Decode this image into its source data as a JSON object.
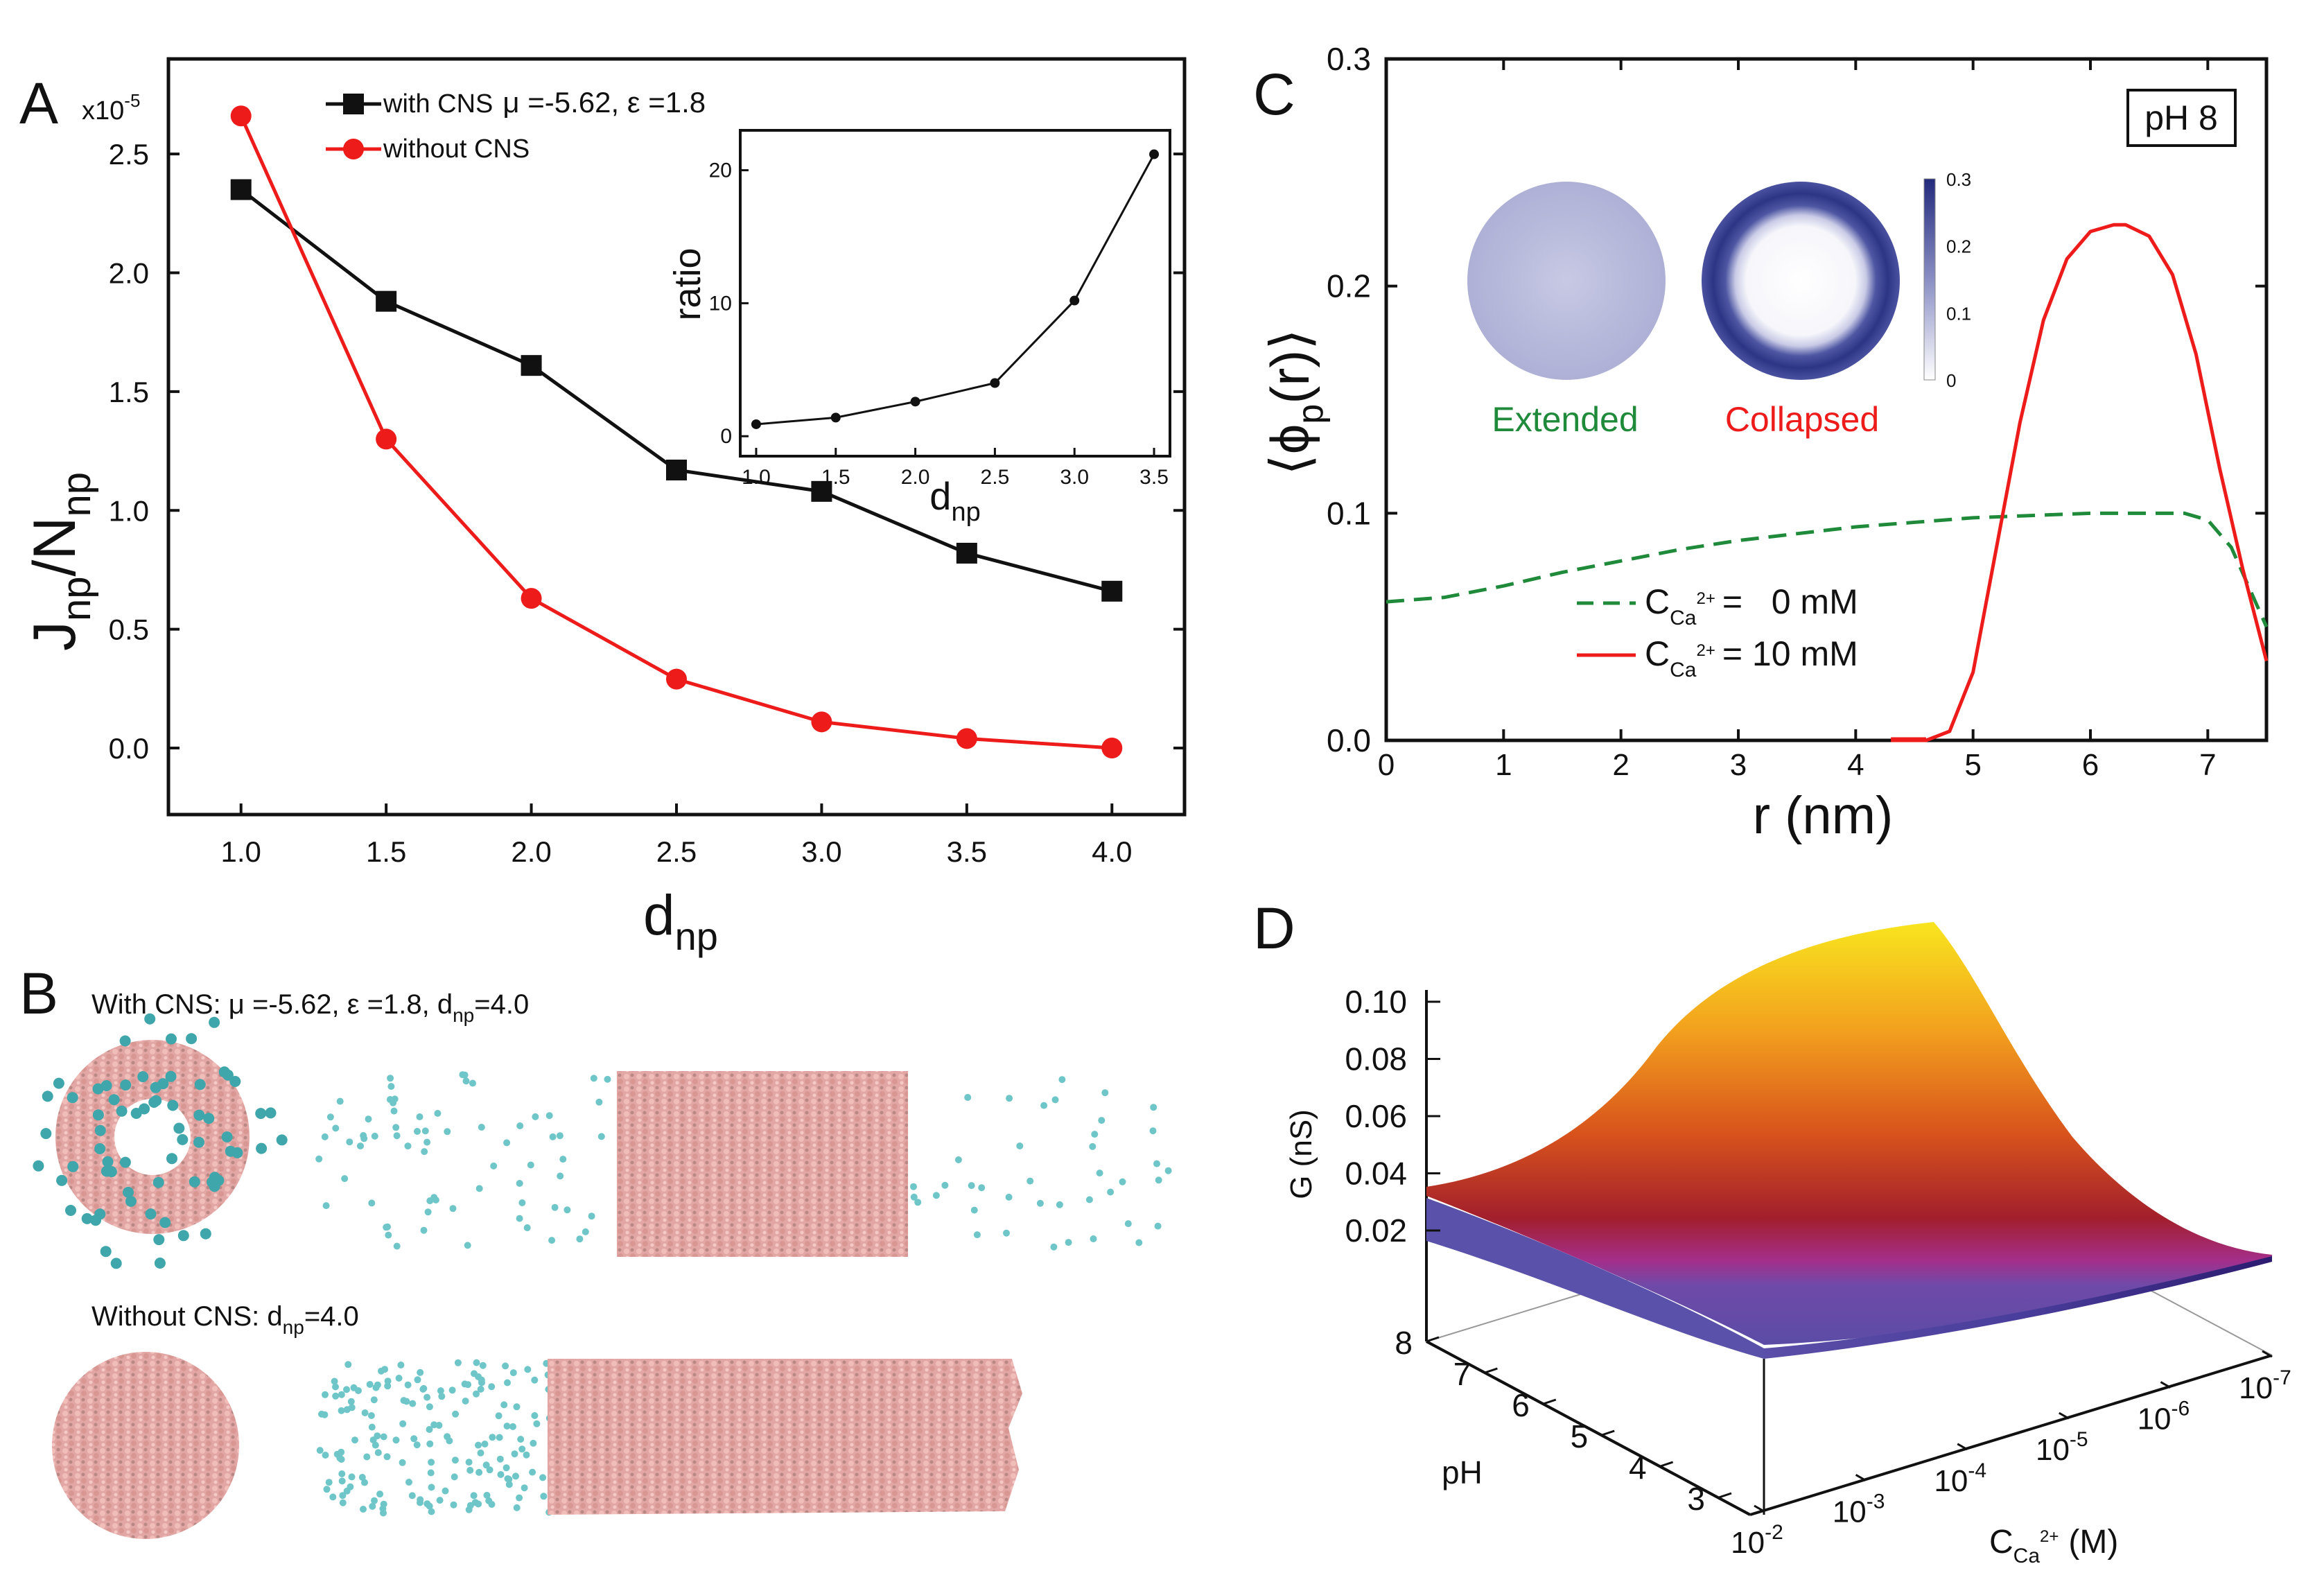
{
  "figure": {
    "panel_labels": {
      "a": "A",
      "b": "B",
      "c": "C",
      "d": "D"
    }
  },
  "colors": {
    "black": "#111111",
    "red": "#ee1b1b",
    "green": "#1f8a3a",
    "cyan": "#6ec6c8",
    "pink": "#e7a9a6",
    "disk_light": "#b4b6da",
    "disk_dark": "#2c3585"
  },
  "chart_data": [
    {
      "panel": "A",
      "type": "line",
      "xlabel": "d",
      "xlabel_sub": "np",
      "ylabel_main": "J",
      "ylabel_sub1": "np",
      "ylabel_mid": "/N",
      "ylabel_sub2": "np",
      "multiplier": "x10",
      "multiplier_exp": "-5",
      "xlim": [
        0.75,
        4.25
      ],
      "ylim": [
        -0.28,
        2.9
      ],
      "xticks": [
        "1.0",
        "1.5",
        "2.0",
        "2.5",
        "3.0",
        "3.5",
        "4.0"
      ],
      "yticks": [
        "0.0",
        "0.5",
        "1.0",
        "1.5",
        "2.0",
        "2.5"
      ],
      "x": [
        1.0,
        1.5,
        2.0,
        2.5,
        3.0,
        3.5,
        4.0
      ],
      "series": [
        {
          "name": "with CNS",
          "legend_params": "μ =-5.62, ε =1.8",
          "marker": "square",
          "color": "#111111",
          "values": [
            2.35,
            1.88,
            1.61,
            1.17,
            1.08,
            0.82,
            0.66
          ]
        },
        {
          "name": "without CNS",
          "marker": "circle",
          "color": "#ee1b1b",
          "values": [
            2.66,
            1.3,
            0.63,
            0.29,
            0.11,
            0.04,
            0.0
          ]
        }
      ],
      "inset": {
        "type": "line",
        "ylabel": "ratio",
        "xlabel": "d",
        "xlabel_sub": "np",
        "xlim": [
          0.9,
          3.6
        ],
        "ylim": [
          -1.5,
          23
        ],
        "xticks": [
          "1.0",
          "1.5",
          "2.0",
          "2.5",
          "3.0",
          "3.5"
        ],
        "yticks": [
          "0",
          "10",
          "20"
        ],
        "x": [
          1.0,
          1.5,
          2.0,
          2.5,
          3.0,
          3.5
        ],
        "values": [
          0.9,
          1.4,
          2.6,
          4.0,
          10.2,
          21.2
        ]
      }
    },
    {
      "panel": "C",
      "type": "line",
      "xlabel": "r (nm)",
      "ylabel": "⟨ϕ",
      "ylabel_sub": "p",
      "ylabel_end": "(r)⟩",
      "xlim": [
        0,
        7.5
      ],
      "ylim": [
        0,
        0.3
      ],
      "xticks": [
        "0",
        "1",
        "2",
        "3",
        "4",
        "5",
        "6",
        "7"
      ],
      "yticks": [
        "0.0",
        "0.1",
        "0.2",
        "0.3"
      ],
      "annotation": "pH 8",
      "colorbar_ticks": [
        "0.3",
        "0.2",
        "0.1",
        "0"
      ],
      "state_labels": [
        "Extended",
        "Collapsed"
      ],
      "series": [
        {
          "name": "C",
          "sub": "Ca",
          "sup": "2+",
          "value_text": "=   0 mM",
          "style": "dashed",
          "color": "#1f8a3a",
          "x": [
            0,
            0.5,
            1,
            1.5,
            2,
            2.5,
            3,
            3.5,
            4,
            4.5,
            5,
            5.5,
            6,
            6.5,
            6.8,
            7.0,
            7.2,
            7.5
          ],
          "values": [
            0.061,
            0.063,
            0.068,
            0.074,
            0.079,
            0.084,
            0.088,
            0.091,
            0.094,
            0.096,
            0.098,
            0.099,
            0.1,
            0.1,
            0.1,
            0.097,
            0.085,
            0.05
          ]
        },
        {
          "name": "C",
          "sub": "Ca",
          "sup": "2+",
          "value_text": "= 10 mM",
          "style": "solid",
          "color": "#ee1b1b",
          "x": [
            4.3,
            4.6,
            4.8,
            5.0,
            5.2,
            5.4,
            5.6,
            5.8,
            6.0,
            6.2,
            6.3,
            6.5,
            6.7,
            6.9,
            7.1,
            7.3,
            7.5
          ],
          "values": [
            0.0,
            0.0,
            0.004,
            0.03,
            0.085,
            0.14,
            0.185,
            0.212,
            0.224,
            0.227,
            0.227,
            0.222,
            0.205,
            0.17,
            0.12,
            0.075,
            0.035
          ]
        }
      ]
    },
    {
      "panel": "D",
      "type": "surface",
      "zlabel": "G (nS)",
      "ylabel": "pH",
      "xlabel": "C",
      "xlabel_sub": "Ca",
      "xlabel_sup": "2+",
      "xlabel_unit": "(M)",
      "zticks": [
        "0.10",
        "0.08",
        "0.06",
        "0.04",
        "0.02"
      ],
      "pH_ticks": [
        "8",
        "7",
        "6",
        "5",
        "4",
        "3"
      ],
      "conc_ticks": [
        {
          "base": "10",
          "exp": "-2"
        },
        {
          "base": "10",
          "exp": "-3"
        },
        {
          "base": "10",
          "exp": "-4"
        },
        {
          "base": "10",
          "exp": "-5"
        },
        {
          "base": "10",
          "exp": "-6"
        },
        {
          "base": "10",
          "exp": "-7"
        }
      ],
      "zlim": [
        0.0,
        0.11
      ],
      "peak_value": 0.105,
      "edge_value": 0.033
    }
  ],
  "panel_b": {
    "row1_title": "With CNS:  μ =-5.62, ε =1.8, d",
    "row1_sub": "np",
    "row1_end": "=4.0",
    "row2_title": "Without CNS:  d",
    "row2_sub": "np",
    "row2_end": "=4.0"
  }
}
